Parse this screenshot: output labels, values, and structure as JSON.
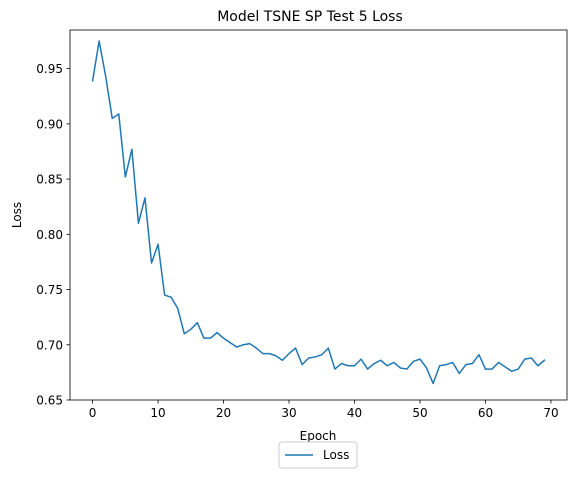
{
  "chart_data": {
    "type": "line",
    "title": "Model TSNE SP Test 5 Loss",
    "xlabel": "Epoch",
    "ylabel": "Loss",
    "xlim": [
      -3.45,
      72.45
    ],
    "ylim": [
      0.65,
      0.985
    ],
    "xticks": [
      0,
      10,
      20,
      30,
      40,
      50,
      60,
      70
    ],
    "xtick_labels": [
      "0",
      "10",
      "20",
      "30",
      "40",
      "50",
      "60",
      "70"
    ],
    "yticks": [
      0.65,
      0.7,
      0.75,
      0.8,
      0.85,
      0.9,
      0.95
    ],
    "ytick_labels": [
      "0.65",
      "0.70",
      "0.75",
      "0.80",
      "0.85",
      "0.90",
      "0.95"
    ],
    "grid": false,
    "legend_position": "lower-center-outside",
    "series": [
      {
        "name": "Loss",
        "color": "#1f77b4",
        "x": [
          0,
          1,
          2,
          3,
          4,
          5,
          6,
          7,
          8,
          9,
          10,
          11,
          12,
          13,
          14,
          15,
          16,
          17,
          18,
          19,
          20,
          21,
          22,
          23,
          24,
          25,
          26,
          27,
          28,
          29,
          30,
          31,
          32,
          33,
          34,
          35,
          36,
          37,
          38,
          39,
          40,
          41,
          42,
          43,
          44,
          45,
          46,
          47,
          48,
          49,
          50,
          51,
          52,
          53,
          54,
          55,
          56,
          57,
          58,
          59,
          60,
          61,
          62,
          63,
          64,
          65,
          66,
          67,
          68,
          69
        ],
        "values": [
          0.939,
          0.975,
          0.943,
          0.905,
          0.909,
          0.852,
          0.877,
          0.81,
          0.833,
          0.774,
          0.791,
          0.745,
          0.743,
          0.733,
          0.71,
          0.714,
          0.72,
          0.706,
          0.706,
          0.711,
          0.706,
          0.702,
          0.698,
          0.7,
          0.701,
          0.697,
          0.692,
          0.692,
          0.69,
          0.686,
          0.692,
          0.697,
          0.682,
          0.688,
          0.689,
          0.691,
          0.697,
          0.678,
          0.683,
          0.681,
          0.681,
          0.687,
          0.678,
          0.683,
          0.686,
          0.681,
          0.684,
          0.679,
          0.678,
          0.685,
          0.687,
          0.679,
          0.665,
          0.681,
          0.682,
          0.684,
          0.674,
          0.682,
          0.683,
          0.691,
          0.678,
          0.678,
          0.684,
          0.68,
          0.676,
          0.678,
          0.687,
          0.688,
          0.681,
          0.686
        ]
      }
    ]
  }
}
